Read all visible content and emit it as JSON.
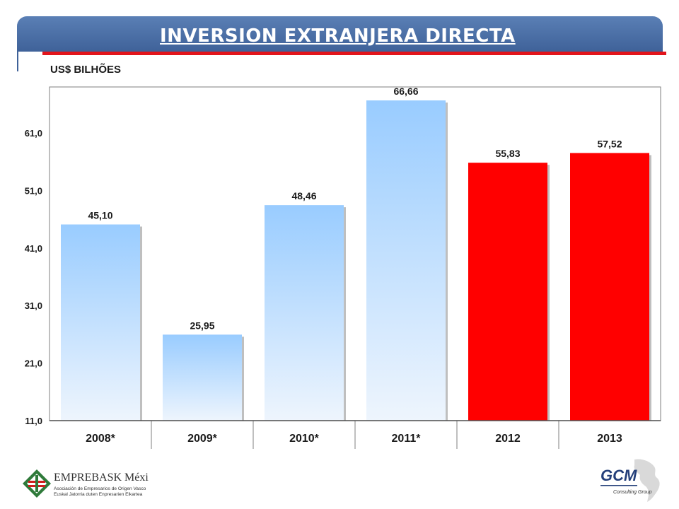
{
  "header": {
    "title": "INVERSION EXTRANJERA DIRECTA"
  },
  "chart_data": {
    "type": "bar",
    "title": "",
    "unit_label": "US$ BILHÕES",
    "categories": [
      "2008*",
      "2009*",
      "2010*",
      "2011*",
      "2012",
      "2013"
    ],
    "values": [
      45.1,
      25.95,
      48.46,
      66.66,
      55.83,
      57.52
    ],
    "value_labels": [
      "45,10",
      "25,95",
      "48,46",
      "66,66",
      "55,83",
      "57,52"
    ],
    "bar_colors": [
      "blue-gradient",
      "blue-gradient",
      "blue-gradient",
      "blue-gradient",
      "#ff0000",
      "#ff0000"
    ],
    "ylim": [
      11.0,
      69.0
    ],
    "yticks": [
      11.0,
      21.0,
      31.0,
      41.0,
      51.0,
      61.0
    ],
    "ytick_labels": [
      "11,0",
      "21,0",
      "31,0",
      "41,0",
      "51,0",
      "61,0"
    ],
    "grid": false,
    "legend": "none"
  },
  "footer": {
    "left_logo": {
      "name": "EMPREBASK México",
      "line1": "Asociación de Empresarios de Origen Vasco",
      "line2": "Euskal Jatorria duten Enpresarien Elkartea"
    },
    "right_logo": {
      "name": "GCM",
      "subtitle": "Consulting Group"
    }
  }
}
